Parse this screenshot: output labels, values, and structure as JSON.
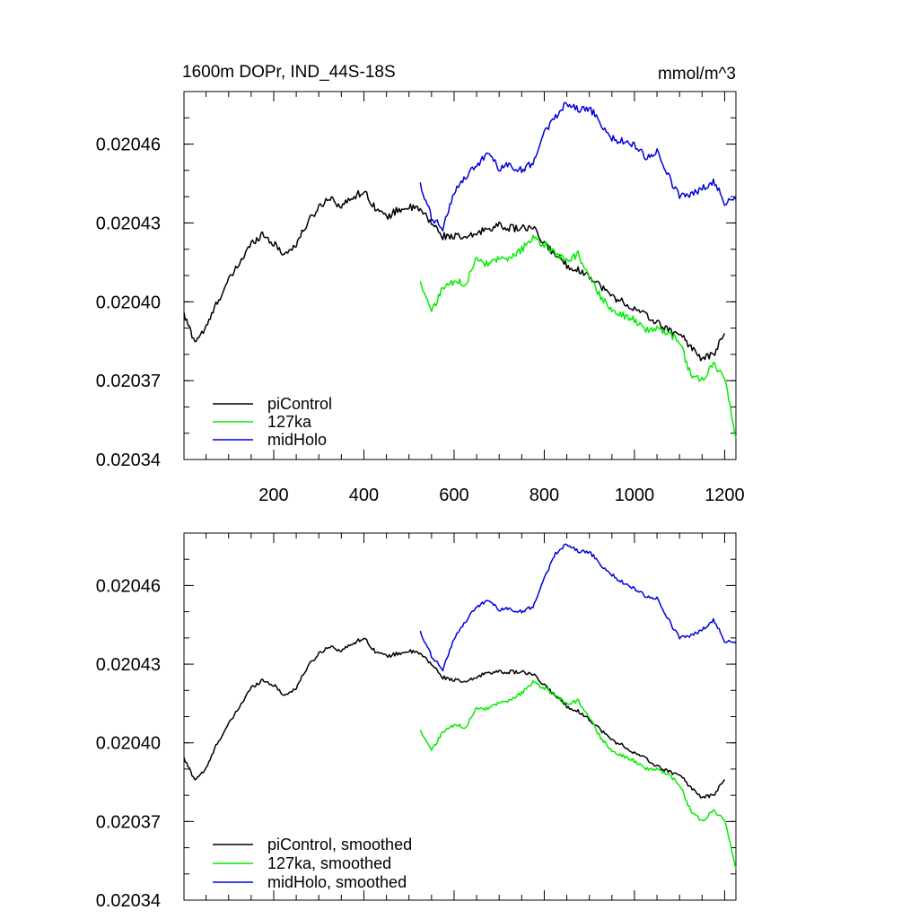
{
  "colors": {
    "piControl": "#000000",
    "127ka": "#00ee00",
    "midHolo": "#0000dd"
  },
  "chart_data": [
    {
      "type": "line",
      "title": "1600m DOPr, IND_44S-18S",
      "units": "mmol/m^3",
      "xlim": [
        1,
        1225
      ],
      "ylim": [
        0.02034,
        0.02048
      ],
      "yticks": [
        0.02034,
        0.02037,
        0.0204,
        0.02043,
        0.02046
      ],
      "ytick_labels": [
        "0.02034",
        "0.02037",
        "0.02040",
        "0.02043",
        "0.02046"
      ],
      "xticks": [
        200,
        400,
        600,
        800,
        1000,
        1200
      ],
      "xtick_labels": [
        "200",
        "400",
        "600",
        "800",
        "1000",
        "1200"
      ],
      "grid": false,
      "legend_position": "bottom-left",
      "series": [
        {
          "name": "piControl",
          "color_key": "piControl",
          "x": [
            1,
            25,
            50,
            75,
            100,
            125,
            150,
            175,
            200,
            225,
            250,
            275,
            300,
            325,
            350,
            375,
            400,
            425,
            450,
            475,
            500,
            525,
            550,
            575,
            600,
            625,
            650,
            675,
            700,
            725,
            750,
            775,
            800,
            825,
            850,
            875,
            900,
            925,
            950,
            975,
            1000,
            1025,
            1050,
            1075,
            1100,
            1125,
            1150,
            1175,
            1200
          ],
          "values": [
            0.020395,
            0.020385,
            0.02039,
            0.0204,
            0.020408,
            0.020415,
            0.020422,
            0.020426,
            0.020422,
            0.020418,
            0.020422,
            0.02043,
            0.020436,
            0.02044,
            0.020436,
            0.02044,
            0.020442,
            0.020436,
            0.020432,
            0.020435,
            0.020436,
            0.020435,
            0.02043,
            0.020425,
            0.020425,
            0.020424,
            0.020426,
            0.020428,
            0.020429,
            0.020428,
            0.020428,
            0.020428,
            0.020422,
            0.020418,
            0.020414,
            0.020412,
            0.02041,
            0.020406,
            0.020402,
            0.0204,
            0.020397,
            0.020395,
            0.020392,
            0.020389,
            0.020388,
            0.020383,
            0.020378,
            0.02038,
            0.020388
          ]
        },
        {
          "name": "127ka",
          "color_key": "127ka",
          "x": [
            525,
            550,
            575,
            600,
            625,
            650,
            675,
            700,
            725,
            750,
            775,
            800,
            825,
            850,
            875,
            900,
            925,
            950,
            975,
            1000,
            1025,
            1050,
            1075,
            1100,
            1125,
            1150,
            1175,
            1200,
            1225
          ],
          "values": [
            0.020408,
            0.020396,
            0.020405,
            0.020408,
            0.020407,
            0.020416,
            0.020414,
            0.020416,
            0.020416,
            0.02042,
            0.020424,
            0.020422,
            0.020418,
            0.020416,
            0.020418,
            0.02041,
            0.020402,
            0.020397,
            0.020395,
            0.020393,
            0.020389,
            0.02039,
            0.020388,
            0.020385,
            0.020372,
            0.02037,
            0.020376,
            0.020372,
            0.020348
          ]
        },
        {
          "name": "midHolo",
          "color_key": "midHolo",
          "x": [
            525,
            550,
            575,
            600,
            625,
            650,
            675,
            700,
            725,
            750,
            775,
            800,
            825,
            850,
            875,
            900,
            925,
            950,
            975,
            1000,
            1025,
            1050,
            1075,
            1100,
            1125,
            1150,
            1175,
            1200,
            1225
          ],
          "values": [
            0.020444,
            0.020432,
            0.020428,
            0.020442,
            0.020447,
            0.020452,
            0.020456,
            0.020451,
            0.020452,
            0.02045,
            0.020453,
            0.020465,
            0.02047,
            0.020476,
            0.020473,
            0.020474,
            0.020468,
            0.020462,
            0.020461,
            0.02046,
            0.020455,
            0.020457,
            0.020448,
            0.02044,
            0.020441,
            0.020443,
            0.020446,
            0.020438,
            0.020439
          ]
        }
      ]
    },
    {
      "type": "line",
      "xlim": [
        1,
        1225
      ],
      "ylim": [
        0.02034,
        0.02048
      ],
      "yticks": [
        0.02034,
        0.02037,
        0.0204,
        0.02043,
        0.02046
      ],
      "ytick_labels": [
        "0.02034",
        "0.02037",
        "0.02040",
        "0.02043",
        "0.02046"
      ],
      "xticks": [
        200,
        400,
        600,
        800,
        1000,
        1200
      ],
      "grid": false,
      "legend_position": "bottom-left",
      "series": [
        {
          "name": "piControl, smoothed",
          "color_key": "piControl",
          "x": [
            1,
            25,
            50,
            75,
            100,
            125,
            150,
            175,
            200,
            225,
            250,
            275,
            300,
            325,
            350,
            375,
            400,
            425,
            450,
            475,
            500,
            525,
            550,
            575,
            600,
            625,
            650,
            675,
            700,
            725,
            750,
            775,
            800,
            825,
            850,
            875,
            900,
            925,
            950,
            975,
            1000,
            1025,
            1050,
            1075,
            1100,
            1125,
            1150,
            1175,
            1200
          ],
          "values": [
            0.020394,
            0.020386,
            0.02039,
            0.0204,
            0.020407,
            0.020414,
            0.020421,
            0.020424,
            0.020422,
            0.020418,
            0.020421,
            0.020429,
            0.020434,
            0.020437,
            0.020435,
            0.020438,
            0.02044,
            0.020435,
            0.020433,
            0.020434,
            0.020435,
            0.020434,
            0.02043,
            0.020425,
            0.020424,
            0.020423,
            0.020425,
            0.020427,
            0.020427,
            0.020427,
            0.020427,
            0.020426,
            0.020422,
            0.020418,
            0.020414,
            0.020412,
            0.020409,
            0.020405,
            0.020401,
            0.020399,
            0.020396,
            0.020394,
            0.020391,
            0.020389,
            0.020388,
            0.020383,
            0.020379,
            0.02038,
            0.020386
          ]
        },
        {
          "name": "127ka, smoothed",
          "color_key": "127ka",
          "x": [
            525,
            550,
            575,
            600,
            625,
            650,
            675,
            700,
            725,
            750,
            775,
            800,
            825,
            850,
            875,
            900,
            925,
            950,
            975,
            1000,
            1025,
            1050,
            1075,
            1100,
            1125,
            1150,
            1175,
            1200,
            1225
          ],
          "values": [
            0.020405,
            0.020397,
            0.020404,
            0.020407,
            0.020406,
            0.020413,
            0.020413,
            0.020415,
            0.020416,
            0.020419,
            0.020423,
            0.020421,
            0.020418,
            0.020415,
            0.020416,
            0.02041,
            0.020402,
            0.020397,
            0.020395,
            0.020393,
            0.02039,
            0.02039,
            0.020388,
            0.020384,
            0.020374,
            0.02037,
            0.020374,
            0.020371,
            0.020352
          ]
        },
        {
          "name": "midHolo, smoothed",
          "color_key": "midHolo",
          "x": [
            525,
            550,
            575,
            600,
            625,
            650,
            675,
            700,
            725,
            750,
            775,
            800,
            825,
            850,
            875,
            900,
            925,
            950,
            975,
            1000,
            1025,
            1050,
            1075,
            1100,
            1125,
            1150,
            1175,
            1200,
            1225
          ],
          "values": [
            0.020442,
            0.020433,
            0.020428,
            0.02044,
            0.020446,
            0.020452,
            0.020454,
            0.020451,
            0.020451,
            0.02045,
            0.020452,
            0.020463,
            0.020472,
            0.020476,
            0.020473,
            0.020473,
            0.020468,
            0.020464,
            0.020461,
            0.020459,
            0.020456,
            0.020455,
            0.020447,
            0.02044,
            0.020441,
            0.020443,
            0.020447,
            0.020439,
            0.020438
          ]
        }
      ]
    }
  ]
}
